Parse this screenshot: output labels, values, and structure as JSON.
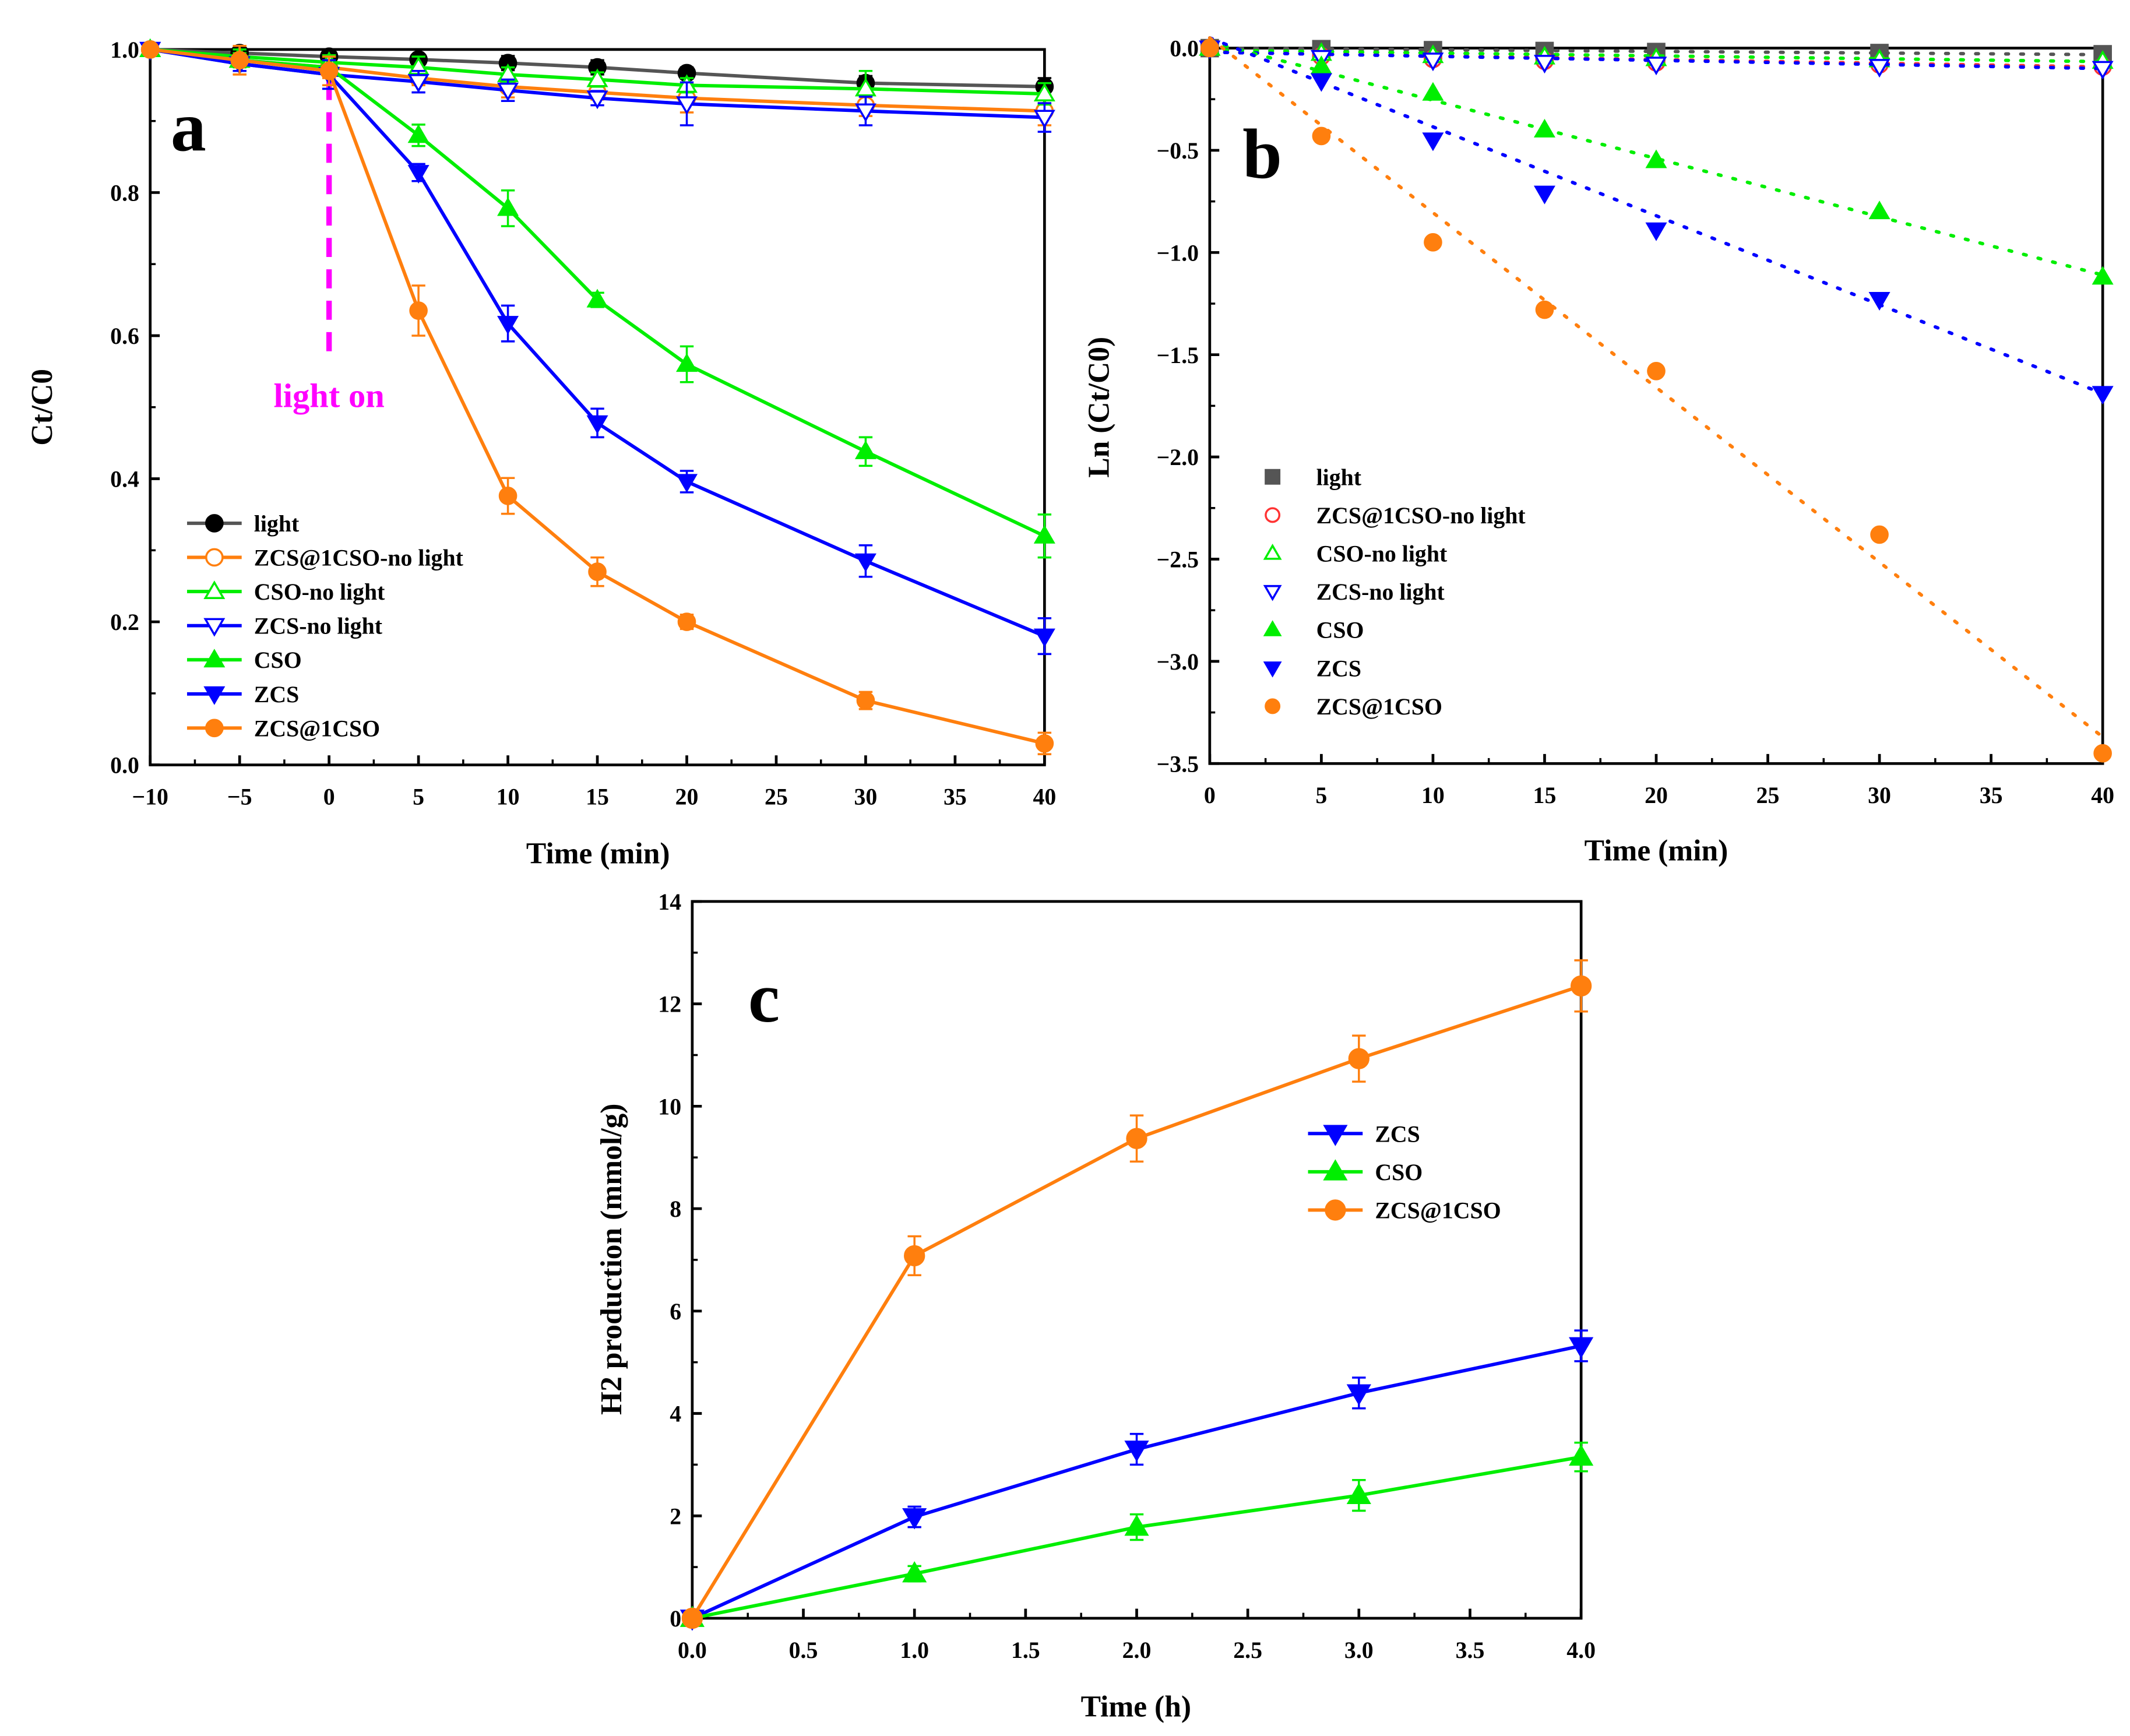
{
  "chart_data": [
    {
      "id": "a",
      "type": "line",
      "panel_label": "a",
      "xlabel": "Time (min)",
      "ylabel": "Ct/C0",
      "xlim": [
        -10,
        40
      ],
      "ylim": [
        0,
        1.0
      ],
      "xticks": [
        -10,
        -5,
        0,
        5,
        10,
        15,
        20,
        25,
        30,
        35,
        40
      ],
      "xtick_labels": [
        "−10",
        "−5",
        "0",
        "5",
        "10",
        "15",
        "20",
        "25",
        "30",
        "35",
        "40"
      ],
      "yticks": [
        0,
        0.2,
        0.4,
        0.6,
        0.8,
        1.0
      ],
      "ytick_labels": [
        "0.0",
        "0.2",
        "0.4",
        "0.6",
        "0.8",
        "1.0"
      ],
      "annotation": "light on",
      "annotation_x": 0,
      "annotation_color": "#ff00ff",
      "legend": "bottom-left",
      "x": [
        -10,
        -5,
        0,
        5,
        10,
        15,
        20,
        30,
        40
      ],
      "series": [
        {
          "name": "light",
          "color": "#000000",
          "line": "#555555",
          "marker": "circle",
          "filled": true,
          "values": [
            1,
            0.995,
            0.99,
            0.986,
            0.981,
            0.975,
            0.967,
            0.953,
            0.948
          ],
          "err": [
            0,
            0.005,
            0.01,
            0.005,
            0.01,
            0.01,
            0.008,
            0.01,
            0.012
          ]
        },
        {
          "name": "ZCS@1CSO-no light",
          "color": "#ff7f0e",
          "line": "#ff7f0e",
          "marker": "circle",
          "filled": false,
          "values": [
            1,
            0.985,
            0.975,
            0.96,
            0.948,
            0.94,
            0.932,
            0.922,
            0.914
          ],
          "err": [
            0,
            0.02,
            0.015,
            0.01,
            0.015,
            0.01,
            0.02,
            0.015,
            0.02
          ]
        },
        {
          "name": "CSO-no light",
          "color": "#00ee00",
          "line": "#00ee00",
          "marker": "triangle-up",
          "filled": false,
          "values": [
            1,
            0.99,
            0.982,
            0.975,
            0.965,
            0.958,
            0.95,
            0.945,
            0.938
          ],
          "err": [
            0,
            0.01,
            0.01,
            0.015,
            0.01,
            0.01,
            0.01,
            0.025,
            0.015
          ]
        },
        {
          "name": "ZCS-no light",
          "color": "#0000ff",
          "line": "#0000ff",
          "marker": "triangle-down",
          "filled": false,
          "values": [
            1,
            0.98,
            0.965,
            0.955,
            0.943,
            0.932,
            0.924,
            0.914,
            0.905
          ],
          "err": [
            0,
            0.01,
            0.02,
            0.015,
            0.015,
            0.01,
            0.03,
            0.02,
            0.02
          ]
        },
        {
          "name": "CSO",
          "color": "#00ee00",
          "line": "#00ee00",
          "marker": "triangle-up",
          "filled": true,
          "values": [
            1,
            0.985,
            0.975,
            0.88,
            0.778,
            0.65,
            0.56,
            0.438,
            0.32
          ],
          "err": [
            0,
            0.01,
            0.01,
            0.015,
            0.025,
            0.01,
            0.025,
            0.02,
            0.03
          ]
        },
        {
          "name": "ZCS",
          "color": "#0000ff",
          "line": "#0000ff",
          "marker": "triangle-down",
          "filled": true,
          "values": [
            1,
            0.98,
            0.965,
            0.828,
            0.617,
            0.478,
            0.396,
            0.285,
            0.18
          ],
          "err": [
            0,
            0.01,
            0.02,
            0.012,
            0.025,
            0.02,
            0.015,
            0.022,
            0.025
          ]
        },
        {
          "name": "ZCS@1CSO",
          "color": "#ff7f0e",
          "line": "#ff7f0e",
          "marker": "circle",
          "filled": true,
          "values": [
            1,
            0.985,
            0.97,
            0.635,
            0.376,
            0.27,
            0.2,
            0.09,
            0.03
          ],
          "err": [
            0,
            0.02,
            0.02,
            0.035,
            0.025,
            0.02,
            0.01,
            0.012,
            0.015
          ]
        }
      ]
    },
    {
      "id": "b",
      "type": "scatter",
      "panel_label": "b",
      "xlabel": "Time (min)",
      "ylabel": "Ln (Ct/C0)",
      "xlim": [
        0,
        40
      ],
      "ylim": [
        -3.5,
        0
      ],
      "xticks": [
        0,
        5,
        10,
        15,
        20,
        25,
        30,
        35,
        40
      ],
      "xtick_labels": [
        "0",
        "5",
        "10",
        "15",
        "20",
        "25",
        "30",
        "35",
        "40"
      ],
      "yticks": [
        0,
        -0.5,
        -1.0,
        -1.5,
        -2.0,
        -2.5,
        -3.0,
        -3.5
      ],
      "ytick_labels": [
        "0.0",
        "−0.5",
        "−1.0",
        "−1.5",
        "−2.0",
        "−2.5",
        "−3.0",
        "−3.5"
      ],
      "legend": "bottom-left",
      "x": [
        0,
        5,
        10,
        15,
        20,
        30,
        40
      ],
      "series": [
        {
          "name": "light",
          "color": "#555555",
          "marker": "square",
          "filled": true,
          "values": [
            0,
            -0.005,
            -0.01,
            -0.014,
            -0.019,
            -0.024,
            -0.03
          ],
          "fit": [
            0,
            -0.0008
          ]
        },
        {
          "name": "ZCS@1CSO-no light",
          "color": "#ff3333",
          "marker": "circle",
          "filled": false,
          "values": [
            0,
            -0.04,
            -0.053,
            -0.062,
            -0.07,
            -0.08,
            -0.09
          ],
          "fit": [
            -0.02,
            -0.0018
          ]
        },
        {
          "name": "CSO-no light",
          "color": "#00ee00",
          "marker": "triangle-up",
          "filled": false,
          "values": [
            0,
            -0.025,
            -0.036,
            -0.043,
            -0.051,
            -0.057,
            -0.064
          ],
          "fit": [
            -0.01,
            -0.0014
          ]
        },
        {
          "name": "ZCS-no light",
          "color": "#0000ff",
          "marker": "triangle-down",
          "filled": false,
          "values": [
            0,
            -0.046,
            -0.059,
            -0.07,
            -0.079,
            -0.09,
            -0.1
          ],
          "fit": [
            -0.02,
            -0.002
          ]
        },
        {
          "name": "CSO",
          "color": "#00ee00",
          "marker": "triangle-up",
          "filled": true,
          "values": [
            0,
            -0.09,
            -0.22,
            -0.4,
            -0.55,
            -0.8,
            -1.12
          ],
          "fit": [
            0.03,
            -0.0285
          ]
        },
        {
          "name": "ZCS",
          "color": "#0000ff",
          "marker": "triangle-down",
          "filled": true,
          "values": [
            0,
            -0.16,
            -0.45,
            -0.71,
            -0.89,
            -1.23,
            -1.69
          ],
          "fit": [
            0.05,
            -0.0435
          ]
        },
        {
          "name": "ZCS@1CSO",
          "color": "#ff7f0e",
          "marker": "circle",
          "filled": true,
          "values": [
            0,
            -0.43,
            -0.95,
            -1.28,
            -1.58,
            -2.38,
            -3.45
          ],
          "fit": [
            0.05,
            -0.0855
          ]
        }
      ]
    },
    {
      "id": "c",
      "type": "line",
      "panel_label": "c",
      "xlabel": "Time (h)",
      "ylabel": "H2 production (mmol/g)",
      "xlim": [
        0,
        4
      ],
      "ylim": [
        0,
        14
      ],
      "xticks": [
        0,
        0.5,
        1,
        1.5,
        2,
        2.5,
        3,
        3.5,
        4
      ],
      "xtick_labels": [
        "0.0",
        "0.5",
        "1.0",
        "1.5",
        "2.0",
        "2.5",
        "3.0",
        "3.5",
        "4.0"
      ],
      "yticks": [
        0,
        2,
        4,
        6,
        8,
        10,
        12,
        14
      ],
      "ytick_labels": [
        "0",
        "2",
        "4",
        "6",
        "8",
        "10",
        "12",
        "14"
      ],
      "legend": "center-right",
      "x": [
        0,
        1,
        2,
        3,
        4
      ],
      "series": [
        {
          "name": "ZCS",
          "color": "#0000ff",
          "line": "#0000ff",
          "marker": "triangle-down",
          "filled": true,
          "values": [
            0,
            1.98,
            3.3,
            4.4,
            5.32
          ],
          "err": [
            0,
            0.2,
            0.3,
            0.3,
            0.3
          ]
        },
        {
          "name": "CSO",
          "color": "#00ee00",
          "line": "#00ee00",
          "marker": "triangle-up",
          "filled": true,
          "values": [
            0,
            0.87,
            1.78,
            2.4,
            3.15
          ],
          "err": [
            0,
            0.15,
            0.25,
            0.3,
            0.28
          ]
        },
        {
          "name": "ZCS@1CSO",
          "color": "#ff7f0e",
          "line": "#ff7f0e",
          "marker": "circle",
          "filled": true,
          "values": [
            0,
            7.08,
            9.37,
            10.93,
            12.35
          ],
          "err": [
            0,
            0.38,
            0.45,
            0.45,
            0.5
          ]
        }
      ]
    }
  ]
}
